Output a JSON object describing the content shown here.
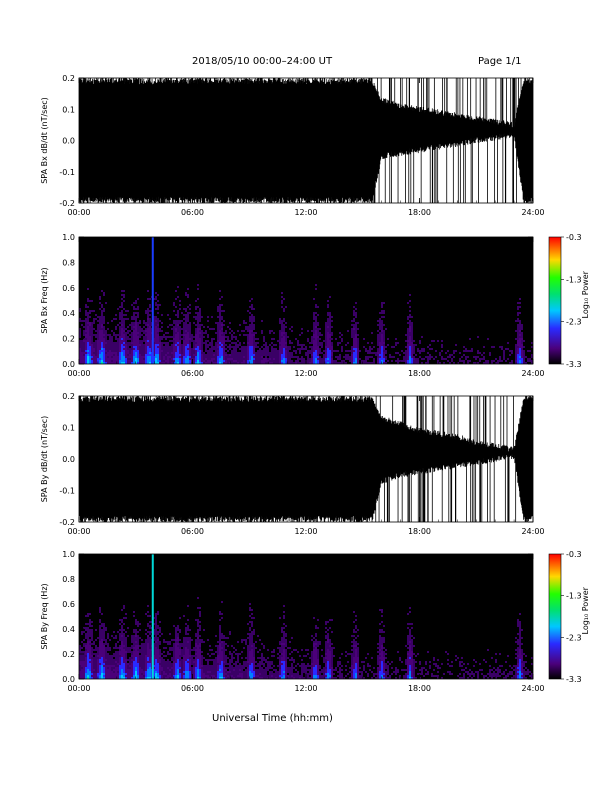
{
  "header": {
    "title": "2018/05/10  00:00–24:00 UT",
    "page": "Page 1/1"
  },
  "xaxis_label": "Universal Time (hh:mm)",
  "colorbar_label": "Log₁₀ Power",
  "chart_data": [
    {
      "id": "bx_waveform",
      "type": "line",
      "ylabel": "SPA Bx dB/dt (nT/sec)",
      "xlim": [
        0,
        24
      ],
      "ylim": [
        -0.2,
        0.2
      ],
      "x_ticks": [
        "00:00",
        "06:00",
        "12:00",
        "18:00",
        "24:00"
      ],
      "y_ticks": [
        "-0.2",
        "-0.1",
        "0.0",
        "0.1",
        "0.2"
      ],
      "color": "#000000",
      "envelope": {
        "hours": [
          0,
          2,
          4,
          6,
          8,
          10,
          12,
          14,
          15.5,
          16,
          17,
          18,
          19,
          20,
          21,
          22,
          23,
          23.5,
          24
        ],
        "upper": [
          0.2,
          0.2,
          0.2,
          0.2,
          0.2,
          0.2,
          0.2,
          0.2,
          0.2,
          0.14,
          0.12,
          0.11,
          0.1,
          0.09,
          0.08,
          0.07,
          0.06,
          0.2,
          0.2
        ],
        "lower": [
          -0.2,
          -0.2,
          -0.2,
          -0.2,
          -0.2,
          -0.2,
          -0.2,
          -0.2,
          -0.2,
          -0.06,
          -0.05,
          -0.04,
          -0.03,
          -0.02,
          -0.01,
          0.0,
          0.01,
          -0.2,
          -0.2
        ]
      }
    },
    {
      "id": "bx_spectrogram",
      "type": "heatmap",
      "ylabel": "SPA Bx Freq (Hz)",
      "xlim": [
        0,
        24
      ],
      "ylim": [
        0,
        1.0
      ],
      "x_ticks": [
        "00:00",
        "06:00",
        "12:00",
        "18:00",
        "24:00"
      ],
      "y_ticks": [
        "0.0",
        "0.2",
        "0.4",
        "0.6",
        "0.8",
        "1.0"
      ],
      "zlim": [
        -3.3,
        -0.3
      ],
      "colorbar_ticks": [
        "-0.3",
        "-1.3",
        "-2.3",
        "-3.3"
      ],
      "bursts_hours": [
        0.5,
        1.2,
        2.3,
        3.0,
        3.7,
        4.1,
        5.2,
        5.7,
        6.3,
        7.5,
        9.1,
        10.8,
        12.5,
        13.2,
        14.6,
        16.0,
        17.5,
        23.3
      ]
    },
    {
      "id": "by_waveform",
      "type": "line",
      "ylabel": "SPA By dB/dt (nT/sec)",
      "xlim": [
        0,
        24
      ],
      "ylim": [
        -0.2,
        0.2
      ],
      "x_ticks": [
        "00:00",
        "06:00",
        "12:00",
        "18:00",
        "24:00"
      ],
      "y_ticks": [
        "-0.2",
        "-0.1",
        "0.0",
        "0.1",
        "0.2"
      ],
      "color": "#000000",
      "envelope": {
        "hours": [
          0,
          2,
          4,
          6,
          8,
          10,
          12,
          14,
          15.5,
          16,
          17,
          18,
          19,
          20,
          21,
          22,
          23,
          23.5,
          24
        ],
        "upper": [
          0.2,
          0.2,
          0.2,
          0.2,
          0.2,
          0.2,
          0.2,
          0.2,
          0.2,
          0.14,
          0.12,
          0.1,
          0.09,
          0.08,
          0.06,
          0.05,
          0.04,
          0.2,
          0.2
        ],
        "lower": [
          -0.2,
          -0.2,
          -0.2,
          -0.2,
          -0.2,
          -0.2,
          -0.2,
          -0.2,
          -0.2,
          -0.08,
          -0.06,
          -0.05,
          -0.04,
          -0.03,
          -0.02,
          -0.01,
          0.0,
          -0.2,
          -0.2
        ]
      }
    },
    {
      "id": "by_spectrogram",
      "type": "heatmap",
      "ylabel": "SPA By Freq (Hz)",
      "xlim": [
        0,
        24
      ],
      "ylim": [
        0,
        1.0
      ],
      "x_ticks": [
        "00:00",
        "06:00",
        "12:00",
        "18:00",
        "24:00"
      ],
      "y_ticks": [
        "0.0",
        "0.2",
        "0.4",
        "0.6",
        "0.8",
        "1.0"
      ],
      "zlim": [
        -3.3,
        -0.3
      ],
      "colorbar_ticks": [
        "-0.3",
        "-1.3",
        "-2.3",
        "-3.3"
      ],
      "bursts_hours": [
        0.5,
        1.2,
        2.3,
        3.0,
        3.7,
        4.1,
        5.2,
        5.7,
        6.3,
        7.5,
        9.1,
        10.8,
        12.5,
        13.2,
        14.6,
        16.0,
        17.5,
        23.3
      ]
    }
  ]
}
